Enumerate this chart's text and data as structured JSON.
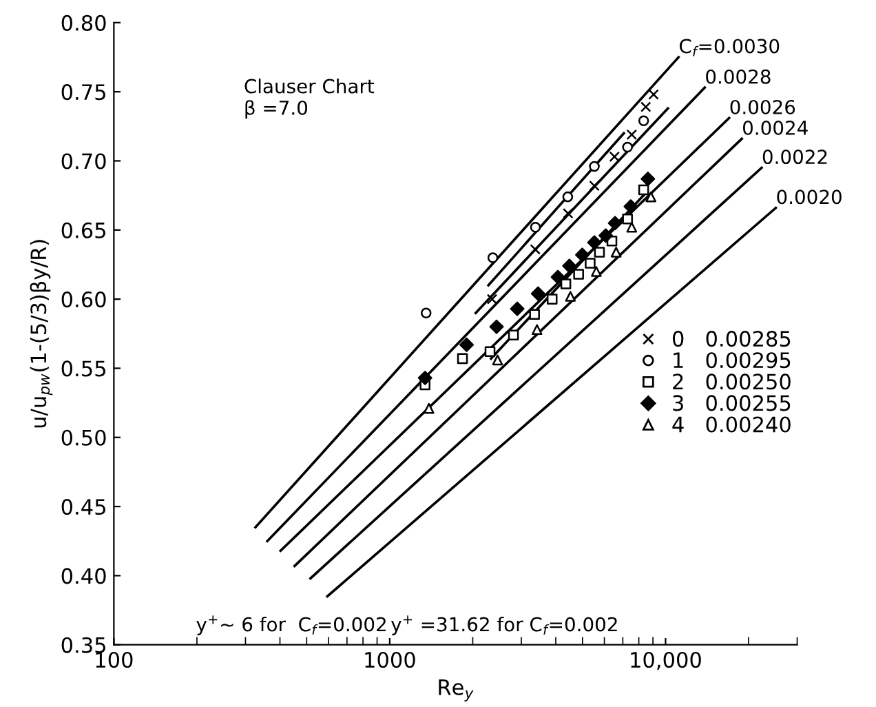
{
  "chart_data": {
    "type": "line",
    "xlabel": "Re$_{y}$",
    "ylabel": "u/u$_{pw}$(1-(5/3)βy/R)",
    "log": "x",
    "xlim": [
      100,
      30000
    ],
    "xticks": [
      100,
      1000,
      {
        "value": 10000,
        "label": "10,000"
      }
    ],
    "ylim": [
      0.35,
      0.8
    ],
    "yticks": [
      {
        "value": 0.35,
        "label": "0.35"
      },
      {
        "value": 0.4,
        "label": "0.40"
      },
      {
        "value": 0.45,
        "label": "0.45"
      },
      {
        "value": 0.5,
        "label": "0.50"
      },
      {
        "value": 0.55,
        "label": "0.55"
      },
      {
        "value": 0.6,
        "label": "0.60"
      },
      {
        "value": 0.65,
        "label": "0.65"
      },
      {
        "value": 0.7,
        "label": "0.70"
      },
      {
        "value": 0.75,
        "label": "0.75"
      },
      {
        "value": 0.8,
        "label": "0.80"
      }
    ],
    "grid": false,
    "legend": "right",
    "series": [
      {
        "name": "C$_{f}$=0.0030",
        "color": "#000000",
        "x": [
          326,
          11150
        ],
        "values": [
          0.435,
          0.775
        ]
      },
      {
        "name": "0.0028",
        "color": "#000000",
        "x": [
          360,
          13870
        ],
        "values": [
          0.425,
          0.753
        ]
      },
      {
        "name": "0.0026",
        "color": "#000000",
        "x": [
          402,
          17000
        ],
        "values": [
          0.418,
          0.731
        ]
      },
      {
        "name": "0.0024",
        "color": "#000000",
        "x": [
          452,
          18900
        ],
        "values": [
          0.407,
          0.716
        ]
      },
      {
        "name": "0.0022",
        "color": "#000000",
        "x": [
          516,
          22300
        ],
        "values": [
          0.398,
          0.695
        ]
      },
      {
        "name": "0.0020",
        "color": "#000000",
        "x": [
          594,
          25100
        ],
        "values": [
          0.385,
          0.666
        ]
      },
      {
        "color": "#000000",
        "x": [
          2280,
          7060
        ],
        "values": [
          0.61,
          0.72
        ]
      },
      {
        "color": "#000000",
        "x": [
          2050,
          10200
        ],
        "values": [
          0.59,
          0.738
        ]
      },
      {
        "color": "#000000",
        "x": [
          2330,
          8590
        ],
        "values": [
          0.557,
          0.678
        ]
      },
      {
        "type": "scatter",
        "marker": "cross",
        "name": "0   0.00285",
        "color": "#000000",
        "x": [
          2350,
          3370,
          4430,
          5520,
          6530,
          7540,
          8480,
          9050
        ],
        "values": [
          0.6,
          0.636,
          0.662,
          0.682,
          0.703,
          0.719,
          0.739,
          0.748
        ]
      },
      {
        "type": "scatter",
        "marker": "circle",
        "name": "1   0.00295",
        "color": "#000000",
        "x": [
          1355,
          2365,
          3375,
          4420,
          5520,
          7280,
          8330
        ],
        "values": [
          0.59,
          0.63,
          0.652,
          0.674,
          0.696,
          0.71,
          0.729
        ]
      },
      {
        "type": "scatter",
        "marker": "square",
        "name": "2   0.00250",
        "color": "#000000",
        "x": [
          1343,
          1836,
          2310,
          2810,
          3350,
          3880,
          4350,
          4840,
          5330,
          5760,
          6390,
          7280,
          8330
        ],
        "values": [
          0.538,
          0.557,
          0.562,
          0.574,
          0.589,
          0.6,
          0.611,
          0.618,
          0.626,
          0.634,
          0.642,
          0.658,
          0.679
        ]
      },
      {
        "type": "scatter",
        "marker": "diamond",
        "name": "3   0.00255",
        "color": "#000000",
        "x": [
          1343,
          1900,
          2440,
          2900,
          3450,
          4070,
          4480,
          4990,
          5520,
          6070,
          6560,
          7480,
          8630
        ],
        "values": [
          0.543,
          0.567,
          0.58,
          0.593,
          0.604,
          0.616,
          0.624,
          0.632,
          0.641,
          0.646,
          0.655,
          0.667,
          0.687
        ]
      },
      {
        "type": "scatter",
        "marker": "triangle",
        "name": "4   0.00240",
        "color": "#000000",
        "x": [
          1387,
          2460,
          3420,
          4520,
          5610,
          6620,
          7540,
          8850
        ],
        "values": [
          0.521,
          0.556,
          0.578,
          0.602,
          0.62,
          0.634,
          0.652,
          0.674
        ]
      }
    ],
    "annotations": [
      "Clauser Chart\nβ =7.0",
      "y$^{+}$~ 6 for  C$_{f}$=0.002",
      "y$^{+}$ =31.62 for C$_{f}$=0.002"
    ]
  }
}
